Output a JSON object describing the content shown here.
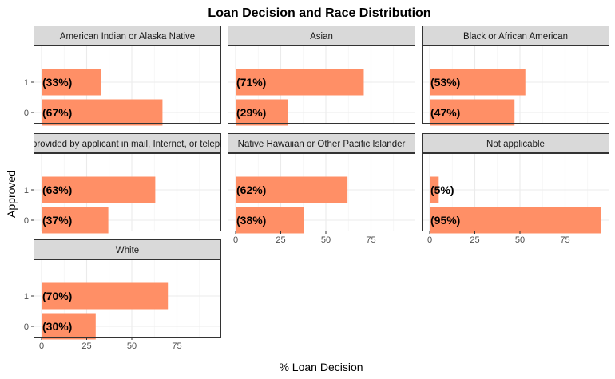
{
  "chart_data": {
    "type": "bar",
    "orientation": "horizontal",
    "title": "Loan Decision and Race Distribution",
    "xlabel": "% Loan Decision",
    "ylabel": "Approved",
    "xlim": [
      0,
      100
    ],
    "x_ticks": [
      "0",
      "25",
      "50",
      "75"
    ],
    "categories": [
      "1",
      "0"
    ],
    "bar_color": "#FF8F66",
    "strip_color": "#D9D9D9",
    "grid": true,
    "panels": [
      {
        "name": "American Indian or Alaska Native",
        "values": [
          33,
          67
        ],
        "labels": [
          "(33%)",
          "(67%)"
        ]
      },
      {
        "name": "Asian",
        "values": [
          71,
          29
        ],
        "labels": [
          "(71%)",
          "(29%)"
        ]
      },
      {
        "name": "Black or African American",
        "values": [
          53,
          47
        ],
        "labels": [
          "(53%)",
          "(47%)"
        ]
      },
      {
        "name": "Information not provided by applicant in mail, Internet, or telephone application",
        "values": [
          63,
          37
        ],
        "labels": [
          "(63%)",
          "(37%)"
        ]
      },
      {
        "name": "Native Hawaiian or Other Pacific Islander",
        "values": [
          62,
          38
        ],
        "labels": [
          "(62%)",
          "(38%)"
        ]
      },
      {
        "name": "Not applicable",
        "values": [
          5,
          95
        ],
        "labels": [
          "(5%)",
          "(95%)"
        ]
      },
      {
        "name": "White",
        "values": [
          70,
          30
        ],
        "labels": [
          "(70%)",
          "(30%)"
        ]
      }
    ]
  }
}
